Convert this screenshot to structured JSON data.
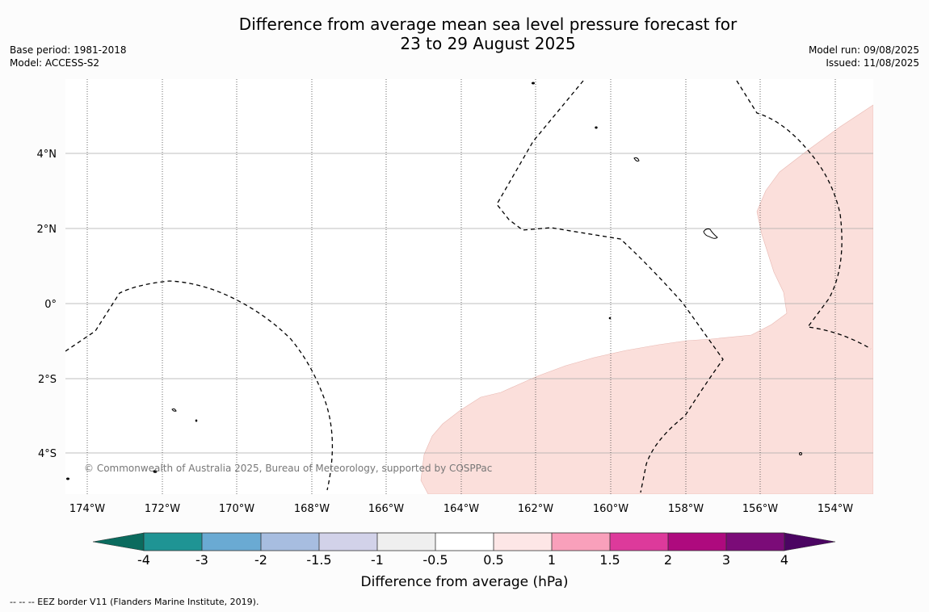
{
  "header": {
    "title_line1": "Difference from average mean sea level pressure forecast for",
    "title_line2": "23 to 29 August 2025",
    "base_period": "Base period: 1981-2018",
    "model": "Model: ACCESS-S2",
    "model_run": "Model run: 09/08/2025",
    "issued": "Issued: 11/08/2025"
  },
  "map": {
    "lon_range": [
      -174.5,
      -153
    ],
    "lat_range": [
      -5.2,
      6
    ],
    "lon_ticks": [
      "174°W",
      "172°W",
      "170°W",
      "168°W",
      "166°W",
      "164°W",
      "162°W",
      "160°W",
      "158°W",
      "156°W",
      "154°W"
    ],
    "lat_ticks": [
      "4°N",
      "2°N",
      "0°",
      "2°S",
      "4°S"
    ],
    "copyright": "© Commonwealth of Australia 2025, Bureau of Meteorology, supported by COSPPac",
    "anomaly_fill_color": "#fbdfdb",
    "anomaly_category": "0.5 to 1",
    "eez_style": "dashed black",
    "land_style": "black outline"
  },
  "colorbar": {
    "ticks": [
      "-4",
      "-3",
      "-2",
      "-1.5",
      "-1",
      "-0.5",
      "0.5",
      "1",
      "1.5",
      "2",
      "3",
      "4"
    ],
    "colors": [
      "#0b6b5e",
      "#1f9494",
      "#6aaad3",
      "#a7bde0",
      "#d2d2e9",
      "#efefef",
      "#ffffff",
      "#fde6e6",
      "#f9a0bb",
      "#dd3a9b",
      "#ae0a7e",
      "#7b0b78",
      "#4b0562"
    ],
    "label": "Difference from average (hPa)"
  },
  "footer": {
    "eez_note": "--  --  -- EEZ border V11 (Flanders Marine Institute, 2019)."
  }
}
